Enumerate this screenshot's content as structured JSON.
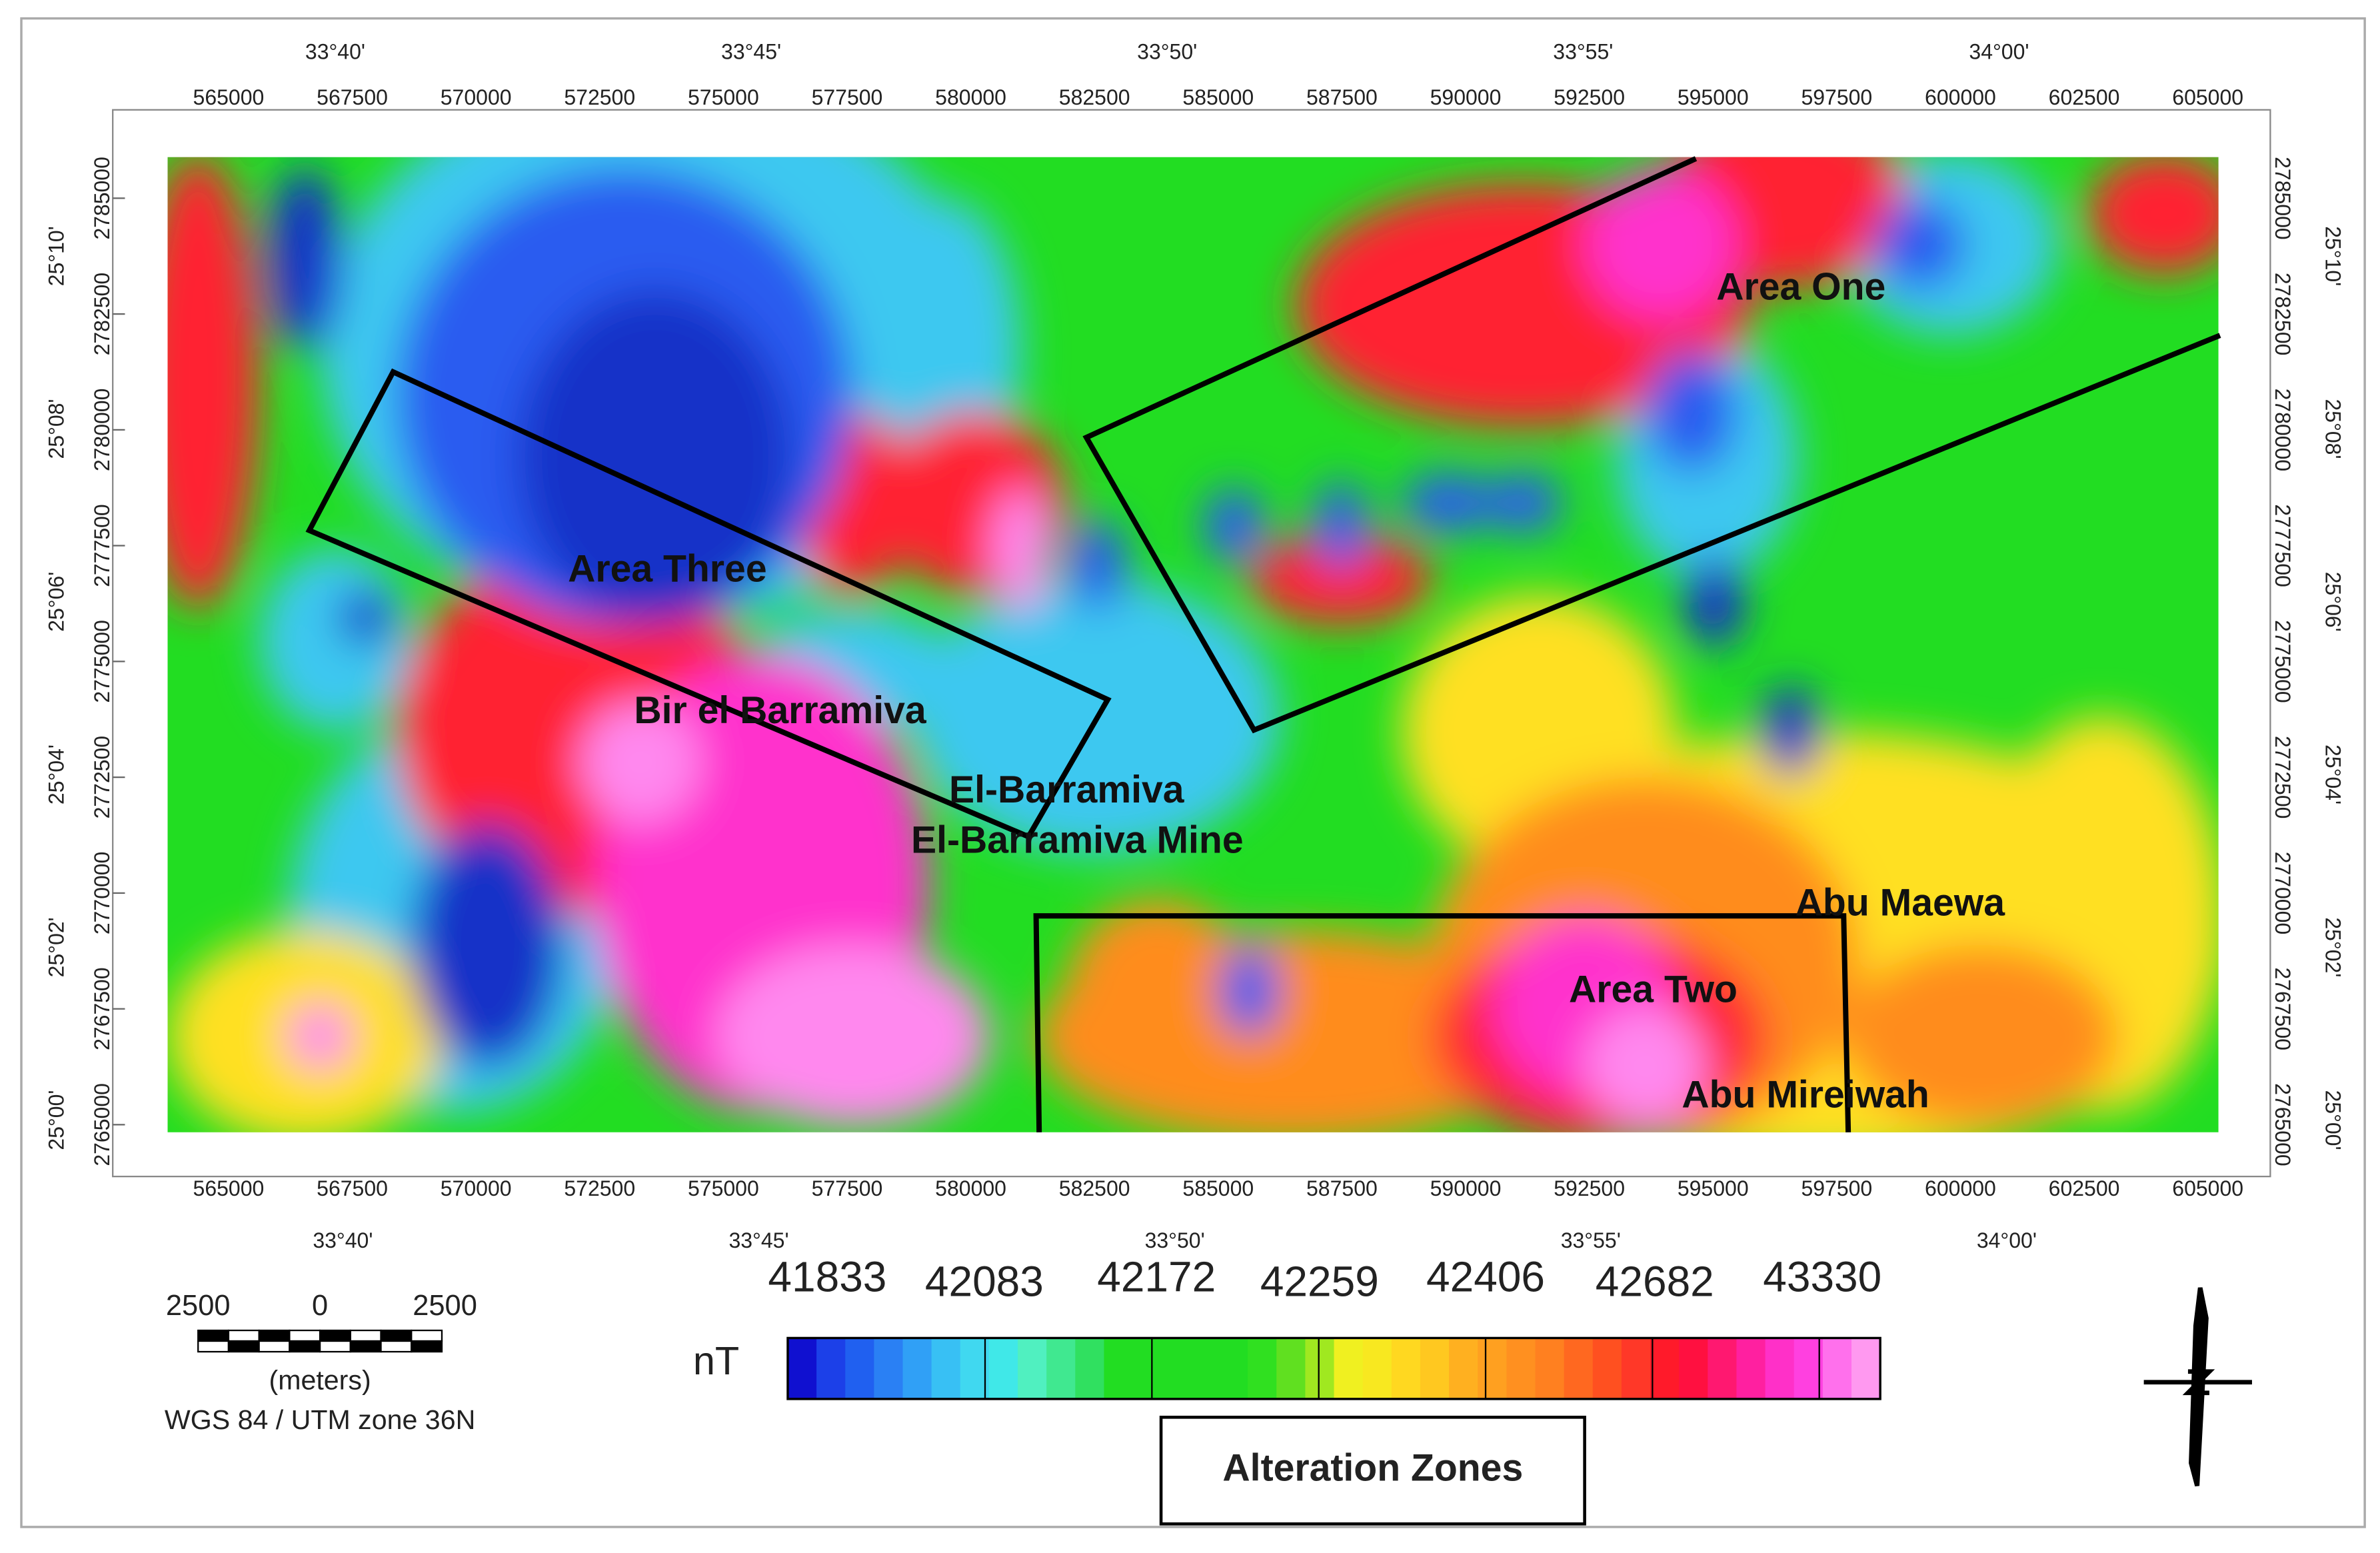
{
  "map": {
    "longitude_labels": [
      "33°40'",
      "33°45'",
      "33°50'",
      "33°55'",
      "34°00'"
    ],
    "easting_labels": [
      "565000",
      "567500",
      "570000",
      "572500",
      "575000",
      "577500",
      "580000",
      "582500",
      "585000",
      "587500",
      "590000",
      "592500",
      "595000",
      "597500",
      "600000",
      "602500",
      "605000"
    ],
    "northing_labels": [
      "2765000",
      "2767500",
      "2770000",
      "2772500",
      "2775000",
      "2777500",
      "2780000",
      "2782500",
      "2785000"
    ],
    "latitude_labels": [
      "25°00'",
      "25°02'",
      "25°04'",
      "25°06'",
      "25°08'",
      "25°10'"
    ],
    "zone_labels": [
      "Area One",
      "Area Two",
      "Area Three"
    ],
    "place_labels": [
      "Bir el Barramiva",
      "El-Barramiva",
      "El-Barramiva Mine",
      "Abu Maewa",
      "Abu Mireiwah"
    ]
  },
  "legend": {
    "unit": "nT",
    "values": [
      41833,
      42083,
      42172,
      42259,
      42406,
      42682,
      43330
    ],
    "title": "Alteration Zones"
  },
  "scale_bar": {
    "labels": [
      "2500",
      "0",
      "2500"
    ],
    "unit": "(meters)",
    "projection": "WGS 84 / UTM zone 36N"
  }
}
